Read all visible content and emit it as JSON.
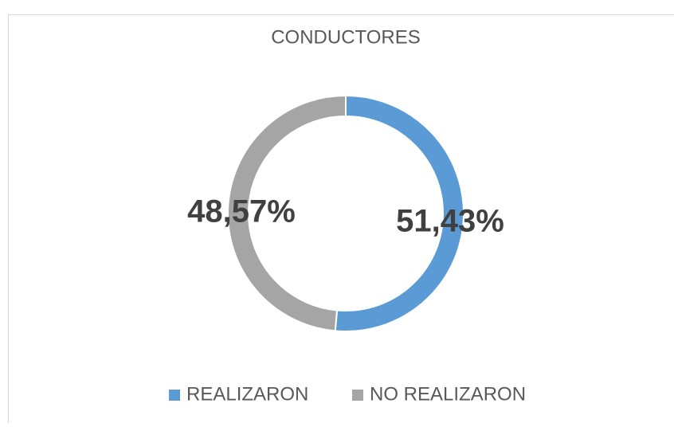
{
  "chart_data": {
    "type": "pie",
    "title": "CONDUCTORES",
    "categories": [
      "REALIZARON",
      "NO REALIZARON"
    ],
    "values": [
      51.43,
      48.57
    ],
    "value_labels": [
      "51,43%",
      "48,57%"
    ],
    "colors": [
      "#5b9bd5",
      "#a5a5a5"
    ],
    "donut": true,
    "legend": "bottom"
  }
}
